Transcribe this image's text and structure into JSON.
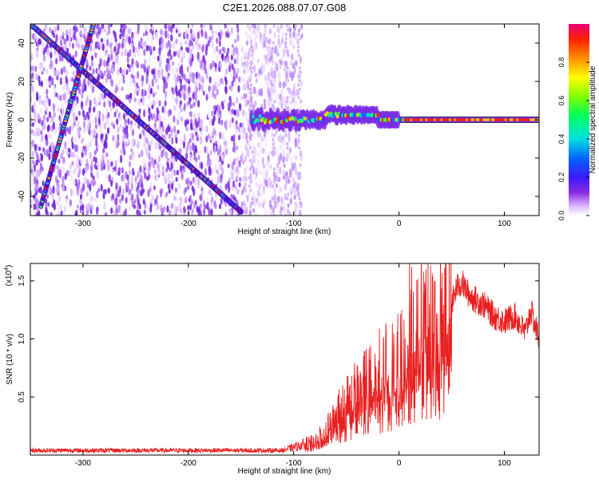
{
  "title": "C2E1.2026.088.07.07.G08",
  "colorbar": {
    "label": "Normalized spectral amplitude",
    "range": [
      0,
      1
    ],
    "ticks": [
      "0.0",
      "0.2",
      "0.4",
      "0.6",
      "0.8"
    ],
    "tick_values": [
      0.0,
      0.2,
      0.4,
      0.6,
      0.8
    ]
  },
  "chart_data": [
    {
      "type": "heatmap",
      "xlabel": "Height of straight line (km)",
      "ylabel": "Frequency (Hz)",
      "xlim": [
        -350,
        133
      ],
      "ylim": [
        -50,
        50
      ],
      "xticks": [
        -300,
        -200,
        -100,
        0,
        100
      ],
      "yticks": [
        -40,
        -20,
        0,
        20,
        40
      ],
      "grid": false,
      "features": {
        "diagonal_track_1": {
          "x": [
            -350,
            -150
          ],
          "y": [
            50,
            -48
          ]
        },
        "diagonal_track_2": {
          "x": [
            -340,
            -290
          ],
          "y": [
            -45,
            50
          ]
        },
        "constant_tone": {
          "x": [
            -140,
            133
          ],
          "y": [
            0,
            0
          ]
        }
      }
    },
    {
      "type": "line",
      "xlabel": "Height of straight line (km)",
      "ylabel": "SNR (10 * v/v)",
      "yscale_label": "(x10",
      "yscale_exp": "4",
      "y_multiplier": 10000,
      "xlim": [
        -350,
        133
      ],
      "ylim": [
        0,
        1.65
      ],
      "xticks": [
        -300,
        -200,
        -100,
        0,
        100
      ],
      "yticks": [
        0.5,
        1.0,
        1.5
      ],
      "ytick_labels": [
        "0.5",
        "1.0",
        "1.5"
      ],
      "grid": false,
      "series_color": "#e82020",
      "series": [
        {
          "x": [
            -350,
            -110,
            -95,
            -80,
            -70,
            -60,
            -50,
            -40,
            -30,
            -20,
            -10,
            0,
            5,
            10,
            15,
            20,
            30,
            40,
            50,
            55,
            60,
            65,
            70,
            80,
            90,
            100,
            110,
            120,
            125,
            133
          ],
          "y": [
            0.04,
            0.04,
            0.08,
            0.12,
            0.2,
            0.33,
            0.45,
            0.55,
            0.65,
            0.7,
            0.75,
            0.8,
            0.9,
            1.0,
            1.1,
            1.2,
            1.1,
            1.15,
            1.3,
            1.45,
            1.48,
            1.4,
            1.35,
            1.3,
            1.2,
            1.15,
            1.2,
            1.05,
            1.25,
            1.0
          ]
        }
      ]
    }
  ]
}
